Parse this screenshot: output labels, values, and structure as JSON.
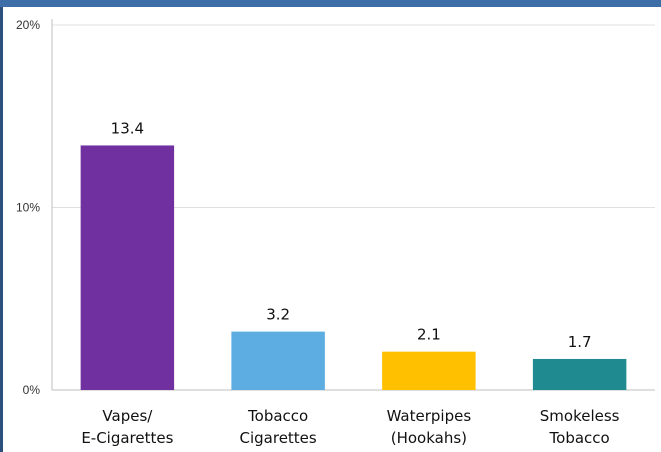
{
  "chart_data": {
    "type": "bar",
    "categories": [
      [
        "Vapes/",
        "E-Cigarettes"
      ],
      [
        "Tobacco",
        "Cigarettes"
      ],
      [
        "Waterpipes",
        "(Hookahs)"
      ],
      [
        "Smokeless",
        "Tobacco"
      ]
    ],
    "values": [
      13.4,
      3.2,
      2.1,
      1.7
    ],
    "data_labels": [
      "13.4",
      "3.2",
      "2.1",
      "1.7"
    ],
    "colors": [
      "#7030a0",
      "#5dade2",
      "#ffc000",
      "#1f8a8f"
    ],
    "ylim": [
      0,
      20
    ],
    "yticks": [
      0,
      10,
      20
    ],
    "ytick_labels": [
      "0%",
      "10%",
      "20%"
    ],
    "grid": true,
    "title": "",
    "xlabel": "",
    "ylabel": ""
  }
}
